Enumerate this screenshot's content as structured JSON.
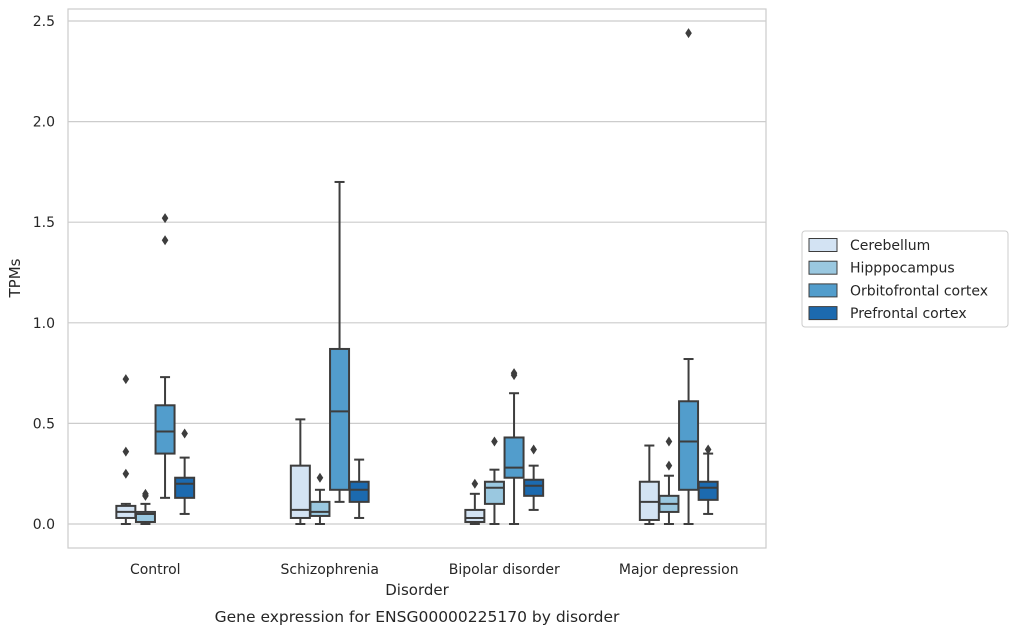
{
  "chart_data": {
    "type": "box",
    "caption": "Gene expression for ENSG00000225170 by disorder",
    "xlabel": "Disorder",
    "ylabel": "TPMs",
    "ylim": [
      -0.12,
      2.57
    ],
    "yticks": [
      0.0,
      0.5,
      1.0,
      1.5,
      2.0,
      2.5
    ],
    "ytick_labels": [
      "0.0",
      "0.5",
      "1.0",
      "1.5",
      "2.0",
      "2.5"
    ],
    "grid": "horizontal",
    "legend_placement": "right",
    "categories": [
      "Control",
      "Schizophrenia",
      "Bipolar disorder",
      "Major depression"
    ],
    "series": [
      {
        "name": "Cerebellum",
        "color": "#d3e3f3",
        "boxes": [
          {
            "whisker_low": 0.0,
            "q1": 0.03,
            "median": 0.06,
            "q3": 0.09,
            "whisker_high": 0.1,
            "outliers": [
              0.72,
              0.36,
              0.25
            ]
          },
          {
            "whisker_low": 0.0,
            "q1": 0.03,
            "median": 0.07,
            "q3": 0.29,
            "whisker_high": 0.52,
            "outliers": []
          },
          {
            "whisker_low": 0.0,
            "q1": 0.01,
            "median": 0.03,
            "q3": 0.07,
            "whisker_high": 0.15,
            "outliers": [
              0.2
            ]
          },
          {
            "whisker_low": 0.0,
            "q1": 0.02,
            "median": 0.11,
            "q3": 0.21,
            "whisker_high": 0.39,
            "outliers": []
          }
        ]
      },
      {
        "name": "Hipppocampus",
        "color": "#9ac8e0",
        "boxes": [
          {
            "whisker_low": 0.0,
            "q1": 0.01,
            "median": 0.05,
            "q3": 0.06,
            "whisker_high": 0.1,
            "outliers": [
              0.15,
              0.14
            ]
          },
          {
            "whisker_low": 0.0,
            "q1": 0.04,
            "median": 0.06,
            "q3": 0.11,
            "whisker_high": 0.17,
            "outliers": [
              0.23
            ]
          },
          {
            "whisker_low": 0.0,
            "q1": 0.1,
            "median": 0.18,
            "q3": 0.21,
            "whisker_high": 0.27,
            "outliers": [
              0.41
            ]
          },
          {
            "whisker_low": 0.0,
            "q1": 0.06,
            "median": 0.1,
            "q3": 0.14,
            "whisker_high": 0.24,
            "outliers": [
              0.41,
              0.29
            ]
          }
        ]
      },
      {
        "name": "Orbitofrontal cortex",
        "color": "#529dcc",
        "boxes": [
          {
            "whisker_low": 0.13,
            "q1": 0.35,
            "median": 0.46,
            "q3": 0.59,
            "whisker_high": 0.73,
            "outliers": [
              1.52,
              1.41
            ]
          },
          {
            "whisker_low": 0.11,
            "q1": 0.17,
            "median": 0.56,
            "q3": 0.87,
            "whisker_high": 1.7,
            "outliers": []
          },
          {
            "whisker_low": 0.0,
            "q1": 0.23,
            "median": 0.28,
            "q3": 0.43,
            "whisker_high": 0.65,
            "outliers": [
              0.74,
              0.75
            ]
          },
          {
            "whisker_low": 0.0,
            "q1": 0.17,
            "median": 0.41,
            "q3": 0.61,
            "whisker_high": 0.82,
            "outliers": [
              2.44
            ]
          }
        ]
      },
      {
        "name": "Prefrontal cortex",
        "color": "#1c6aaf",
        "boxes": [
          {
            "whisker_low": 0.05,
            "q1": 0.13,
            "median": 0.2,
            "q3": 0.23,
            "whisker_high": 0.33,
            "outliers": [
              0.45
            ]
          },
          {
            "whisker_low": 0.03,
            "q1": 0.11,
            "median": 0.17,
            "q3": 0.21,
            "whisker_high": 0.32,
            "outliers": []
          },
          {
            "whisker_low": 0.07,
            "q1": 0.14,
            "median": 0.19,
            "q3": 0.22,
            "whisker_high": 0.29,
            "outliers": [
              0.37
            ]
          },
          {
            "whisker_low": 0.05,
            "q1": 0.12,
            "median": 0.18,
            "q3": 0.21,
            "whisker_high": 0.35,
            "outliers": [
              0.37
            ]
          }
        ]
      }
    ]
  }
}
